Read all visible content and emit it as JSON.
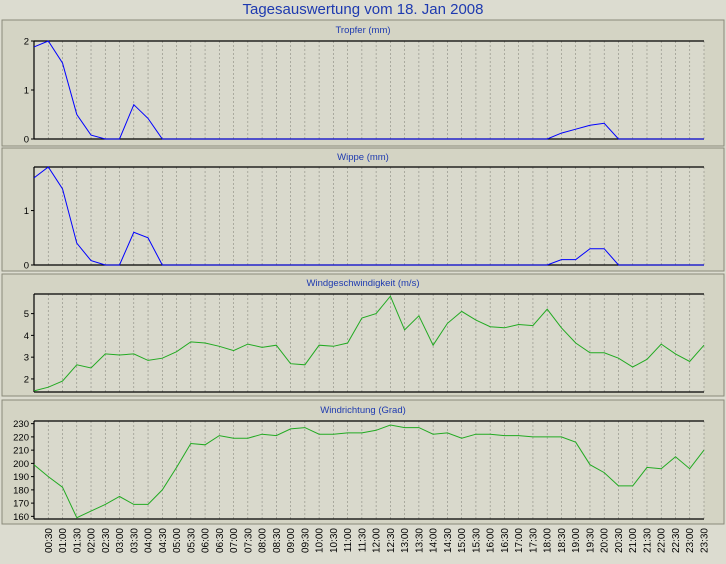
{
  "title": "Tagesauswertung vom 18. Jan 2008",
  "colors": {
    "blue": "#0000ff",
    "green": "#22aa22",
    "title": "#1e3ab0",
    "background": "#dcdcd0"
  },
  "x_ticks": [
    "00:30",
    "01:00",
    "01:30",
    "02:00",
    "02:30",
    "03:00",
    "03:30",
    "04:00",
    "04:30",
    "05:00",
    "05:30",
    "06:00",
    "06:30",
    "07:00",
    "07:30",
    "08:00",
    "08:30",
    "09:00",
    "09:30",
    "10:00",
    "10:30",
    "11:00",
    "11:30",
    "12:00",
    "12:30",
    "13:00",
    "13:30",
    "14:00",
    "14:30",
    "15:00",
    "15:30",
    "16:00",
    "16:30",
    "17:00",
    "17:30",
    "18:00",
    "18:30",
    "19:00",
    "19:30",
    "20:00",
    "20:30",
    "21:00",
    "21:30",
    "22:00",
    "22:30",
    "23:00",
    "23:30"
  ],
  "chart_data": [
    {
      "type": "line",
      "title": "Tropfer (mm)",
      "color": "#0000ff",
      "ylim": [
        0,
        2
      ],
      "yticks": [
        0,
        1,
        2
      ],
      "x": [
        0,
        0.5,
        1,
        1.5,
        2,
        2.5,
        3,
        3.5,
        4,
        4.5,
        5,
        5.5,
        6,
        6.5,
        7,
        7.5,
        8,
        8.5,
        9,
        9.5,
        10,
        10.5,
        11,
        11.5,
        12,
        12.5,
        13,
        13.5,
        14,
        14.5,
        15,
        15.5,
        16,
        16.5,
        17,
        17.5,
        18,
        18.5,
        19,
        19.5,
        20,
        20.5,
        21,
        21.5,
        22,
        22.5,
        23,
        23.5
      ],
      "values": [
        1.88,
        2.0,
        1.55,
        0.5,
        0.08,
        0,
        0,
        0.7,
        0.42,
        0,
        0,
        0,
        0,
        0,
        0,
        0,
        0,
        0,
        0,
        0,
        0,
        0,
        0,
        0,
        0,
        0,
        0,
        0,
        0,
        0,
        0,
        0,
        0,
        0,
        0,
        0,
        0,
        0.12,
        0.2,
        0.28,
        0.32,
        0,
        0,
        0,
        0,
        0,
        0,
        0
      ]
    },
    {
      "type": "line",
      "title": "Wippe (mm)",
      "color": "#0000ff",
      "ylim": [
        0,
        1.8
      ],
      "yticks": [
        0,
        1
      ],
      "x": [
        0,
        0.5,
        1,
        1.5,
        2,
        2.5,
        3,
        3.5,
        4,
        4.5,
        5,
        5.5,
        6,
        6.5,
        7,
        7.5,
        8,
        8.5,
        9,
        9.5,
        10,
        10.5,
        11,
        11.5,
        12,
        12.5,
        13,
        13.5,
        14,
        14.5,
        15,
        15.5,
        16,
        16.5,
        17,
        17.5,
        18,
        18.5,
        19,
        19.5,
        20,
        20.5,
        21,
        21.5,
        22,
        22.5,
        23,
        23.5
      ],
      "values": [
        1.6,
        1.8,
        1.4,
        0.4,
        0.08,
        0,
        0,
        0.6,
        0.5,
        0,
        0,
        0,
        0,
        0,
        0,
        0,
        0,
        0,
        0,
        0,
        0,
        0,
        0,
        0,
        0,
        0,
        0,
        0,
        0,
        0,
        0,
        0,
        0,
        0,
        0,
        0,
        0,
        0.1,
        0.1,
        0.3,
        0.3,
        0,
        0,
        0,
        0,
        0,
        0,
        0
      ]
    },
    {
      "type": "line",
      "title": "Windgeschwindigkeit (m/s)",
      "color": "#22aa22",
      "ylim": [
        1.4,
        5.9
      ],
      "yticks": [
        2,
        3,
        4,
        5
      ],
      "x": [
        0,
        0.5,
        1,
        1.5,
        2,
        2.5,
        3,
        3.5,
        4,
        4.5,
        5,
        5.5,
        6,
        6.5,
        7,
        7.5,
        8,
        8.5,
        9,
        9.5,
        10,
        10.5,
        11,
        11.5,
        12,
        12.5,
        13,
        13.5,
        14,
        14.5,
        15,
        15.5,
        16,
        16.5,
        17,
        17.5,
        18,
        18.5,
        19,
        19.5,
        20,
        20.5,
        21,
        21.5,
        22,
        22.5,
        23,
        23.5
      ],
      "values": [
        1.45,
        1.62,
        1.9,
        2.65,
        2.5,
        3.15,
        3.1,
        3.15,
        2.85,
        2.95,
        3.25,
        3.7,
        3.65,
        3.5,
        3.3,
        3.6,
        3.45,
        3.55,
        2.7,
        2.65,
        3.55,
        3.5,
        3.65,
        4.8,
        5.0,
        5.8,
        4.25,
        4.9,
        3.55,
        4.55,
        5.1,
        4.7,
        4.4,
        4.35,
        4.5,
        4.45,
        5.2,
        4.35,
        3.65,
        3.2,
        3.2,
        2.95,
        2.55,
        2.9,
        3.6,
        3.15,
        2.8,
        3.55
      ]
    },
    {
      "type": "line",
      "title": "Windrichtung (Grad)",
      "color": "#22aa22",
      "ylim": [
        158,
        232
      ],
      "yticks": [
        160,
        170,
        180,
        190,
        200,
        210,
        220,
        230
      ],
      "x": [
        0,
        0.5,
        1,
        1.5,
        2,
        2.5,
        3,
        3.5,
        4,
        4.5,
        5,
        5.5,
        6,
        6.5,
        7,
        7.5,
        8,
        8.5,
        9,
        9.5,
        10,
        10.5,
        11,
        11.5,
        12,
        12.5,
        13,
        13.5,
        14,
        14.5,
        15,
        15.5,
        16,
        16.5,
        17,
        17.5,
        18,
        18.5,
        19,
        19.5,
        20,
        20.5,
        21,
        21.5,
        22,
        22.5,
        23,
        23.5
      ],
      "values": [
        199,
        190,
        182,
        159,
        164,
        169,
        175,
        169,
        169,
        180,
        197,
        215,
        214,
        221,
        219,
        219,
        222,
        221,
        226,
        227,
        222,
        222,
        223,
        223,
        225,
        229,
        227,
        227,
        222,
        223,
        219,
        222,
        222,
        221,
        221,
        220,
        220,
        220,
        216,
        199,
        193,
        183,
        183,
        197,
        196,
        205,
        196,
        210
      ]
    }
  ]
}
